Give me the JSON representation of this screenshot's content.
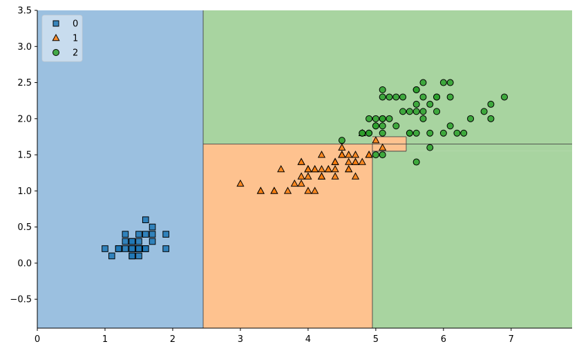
{
  "chart_data": {
    "type": "scatter",
    "title": "",
    "xlabel": "",
    "ylabel": "",
    "xlim": [
      0,
      7.9
    ],
    "ylim": [
      -0.9,
      3.5
    ],
    "xticks": [
      0,
      1,
      2,
      3,
      4,
      5,
      6,
      7
    ],
    "yticks": [
      -0.5,
      0.0,
      0.5,
      1.0,
      1.5,
      2.0,
      2.5,
      3.0,
      3.5
    ],
    "ytick_labels": [
      "−0.5",
      "0.0",
      "0.5",
      "1.0",
      "1.5",
      "2.0",
      "2.5",
      "3.0",
      "3.5"
    ],
    "grid": false,
    "legend_position": "top-left",
    "decision_regions": [
      {
        "class": "0",
        "x": [
          0,
          2.45
        ],
        "y": [
          -0.9,
          3.5
        ]
      },
      {
        "class": "2",
        "x": [
          2.45,
          7.9
        ],
        "y": [
          1.65,
          3.5
        ]
      },
      {
        "class": "1",
        "x": [
          2.45,
          4.95
        ],
        "y": [
          -0.9,
          1.65
        ]
      },
      {
        "class": "2",
        "x": [
          4.95,
          7.9
        ],
        "y": [
          -0.9,
          1.55
        ]
      },
      {
        "class": "1",
        "x": [
          4.95,
          5.45
        ],
        "y": [
          1.55,
          1.75
        ]
      },
      {
        "class": "2",
        "x": [
          5.45,
          7.9
        ],
        "y": [
          1.55,
          1.65
        ]
      }
    ],
    "series": [
      {
        "name": "0",
        "marker": "square",
        "color": "#1f77b4",
        "region_color": "#9bc0e0",
        "points": [
          [
            1.4,
            0.2
          ],
          [
            1.3,
            0.2
          ],
          [
            1.5,
            0.2
          ],
          [
            1.4,
            0.2
          ],
          [
            1.7,
            0.4
          ],
          [
            1.4,
            0.3
          ],
          [
            1.5,
            0.2
          ],
          [
            1.5,
            0.1
          ],
          [
            1.6,
            0.2
          ],
          [
            1.1,
            0.1
          ],
          [
            1.2,
            0.2
          ],
          [
            1.5,
            0.4
          ],
          [
            1.3,
            0.4
          ],
          [
            1.7,
            0.3
          ],
          [
            1.5,
            0.3
          ],
          [
            1.0,
            0.2
          ],
          [
            1.9,
            0.2
          ],
          [
            1.6,
            0.4
          ],
          [
            1.4,
            0.1
          ],
          [
            1.6,
            0.6
          ],
          [
            1.9,
            0.4
          ],
          [
            1.3,
            0.3
          ],
          [
            1.4,
            0.3
          ],
          [
            1.2,
            0.2
          ],
          [
            1.6,
            0.2
          ],
          [
            1.7,
            0.5
          ],
          [
            1.5,
            0.2
          ],
          [
            1.4,
            0.1
          ]
        ]
      },
      {
        "name": "1",
        "marker": "triangle",
        "color": "#ff7f0e",
        "region_color": "#fec28f",
        "points": [
          [
            4.7,
            1.4
          ],
          [
            4.5,
            1.5
          ],
          [
            4.9,
            1.5
          ],
          [
            4.0,
            1.3
          ],
          [
            4.6,
            1.5
          ],
          [
            3.3,
            1.0
          ],
          [
            4.6,
            1.3
          ],
          [
            3.9,
            1.4
          ],
          [
            3.5,
            1.0
          ],
          [
            4.2,
            1.5
          ],
          [
            4.0,
            1.0
          ],
          [
            4.7,
            1.4
          ],
          [
            3.6,
            1.3
          ],
          [
            4.4,
            1.4
          ],
          [
            4.5,
            1.5
          ],
          [
            4.1,
            1.0
          ],
          [
            4.5,
            1.5
          ],
          [
            3.9,
            1.1
          ],
          [
            4.8,
            1.8
          ],
          [
            4.0,
            1.3
          ],
          [
            4.9,
            1.5
          ],
          [
            4.7,
            1.2
          ],
          [
            4.3,
            1.3
          ],
          [
            4.4,
            1.4
          ],
          [
            4.8,
            1.4
          ],
          [
            5.0,
            1.7
          ],
          [
            4.5,
            1.5
          ],
          [
            3.5,
            1.0
          ],
          [
            3.8,
            1.1
          ],
          [
            3.7,
            1.0
          ],
          [
            3.9,
            1.2
          ],
          [
            5.1,
            1.6
          ],
          [
            4.5,
            1.5
          ],
          [
            4.5,
            1.6
          ],
          [
            4.7,
            1.5
          ],
          [
            4.4,
            1.3
          ],
          [
            4.1,
            1.3
          ],
          [
            4.0,
            1.3
          ],
          [
            4.4,
            1.2
          ],
          [
            4.6,
            1.4
          ],
          [
            4.0,
            1.2
          ],
          [
            3.3,
            1.0
          ],
          [
            4.2,
            1.3
          ],
          [
            4.2,
            1.2
          ],
          [
            4.3,
            1.3
          ],
          [
            3.0,
            1.1
          ],
          [
            4.1,
            1.3
          ],
          [
            4.6,
            1.3
          ],
          [
            4.4,
            1.4
          ],
          [
            4.2,
            1.2
          ],
          [
            3.9,
            1.4
          ]
        ]
      },
      {
        "name": "2",
        "marker": "circle",
        "color": "#2ca02c",
        "region_color": "#a8d4a0",
        "points": [
          [
            6.0,
            2.5
          ],
          [
            5.1,
            1.9
          ],
          [
            5.9,
            2.1
          ],
          [
            5.6,
            1.8
          ],
          [
            5.8,
            2.2
          ],
          [
            6.6,
            2.1
          ],
          [
            4.5,
            1.7
          ],
          [
            6.3,
            1.8
          ],
          [
            5.8,
            1.8
          ],
          [
            6.1,
            2.5
          ],
          [
            5.1,
            2.0
          ],
          [
            5.3,
            1.9
          ],
          [
            5.5,
            2.1
          ],
          [
            5.0,
            2.0
          ],
          [
            5.1,
            2.4
          ],
          [
            5.3,
            2.3
          ],
          [
            5.5,
            1.8
          ],
          [
            6.7,
            2.2
          ],
          [
            6.9,
            2.3
          ],
          [
            5.0,
            1.5
          ],
          [
            5.7,
            2.3
          ],
          [
            4.9,
            2.0
          ],
          [
            6.7,
            2.0
          ],
          [
            4.9,
            1.8
          ],
          [
            5.7,
            2.1
          ],
          [
            6.0,
            1.8
          ],
          [
            4.8,
            1.8
          ],
          [
            4.9,
            1.8
          ],
          [
            5.6,
            2.1
          ],
          [
            5.8,
            1.6
          ],
          [
            6.1,
            1.9
          ],
          [
            6.4,
            2.0
          ],
          [
            5.6,
            2.2
          ],
          [
            5.1,
            1.5
          ],
          [
            5.6,
            1.4
          ],
          [
            6.1,
            2.3
          ],
          [
            5.6,
            2.4
          ],
          [
            5.5,
            1.8
          ],
          [
            4.8,
            1.8
          ],
          [
            5.4,
            2.1
          ],
          [
            5.6,
            2.4
          ],
          [
            5.1,
            2.3
          ],
          [
            5.9,
            2.3
          ],
          [
            5.7,
            2.5
          ],
          [
            5.2,
            2.3
          ],
          [
            5.0,
            1.9
          ],
          [
            5.2,
            2.0
          ],
          [
            5.4,
            2.3
          ],
          [
            5.1,
            1.8
          ],
          [
            5.1,
            2.0
          ],
          [
            5.0,
            1.9
          ],
          [
            5.9,
            2.3
          ],
          [
            5.7,
            2.0
          ],
          [
            6.2,
            1.8
          ]
        ]
      }
    ]
  }
}
